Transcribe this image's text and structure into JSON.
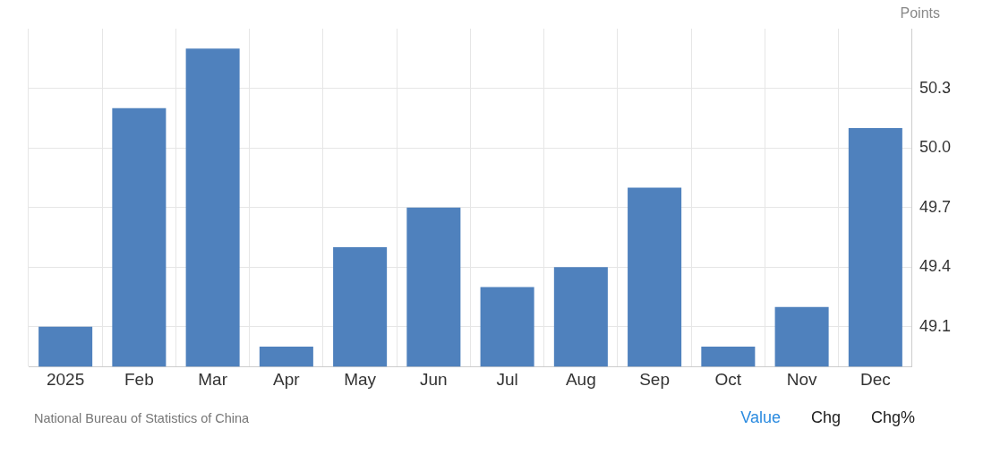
{
  "chart_data": {
    "type": "bar",
    "ylabel": "Points",
    "categories": [
      "2025",
      "Feb",
      "Mar",
      "Apr",
      "May",
      "Jun",
      "Jul",
      "Aug",
      "Sep",
      "Oct",
      "Nov",
      "Dec"
    ],
    "values": [
      49.1,
      50.2,
      50.5,
      49.0,
      49.5,
      49.7,
      49.3,
      49.4,
      49.8,
      49.0,
      49.2,
      50.1
    ],
    "color": "#4f81bd",
    "ylim": [
      48.9,
      50.6
    ],
    "yticks": [
      49.1,
      49.4,
      49.7,
      {
        "value": 50,
        "label": "50.0"
      },
      50.3
    ],
    "grid": true,
    "annotations": [
      "National Bureau of Statistics of China",
      "Value",
      "Chg",
      "Chg%"
    ]
  }
}
